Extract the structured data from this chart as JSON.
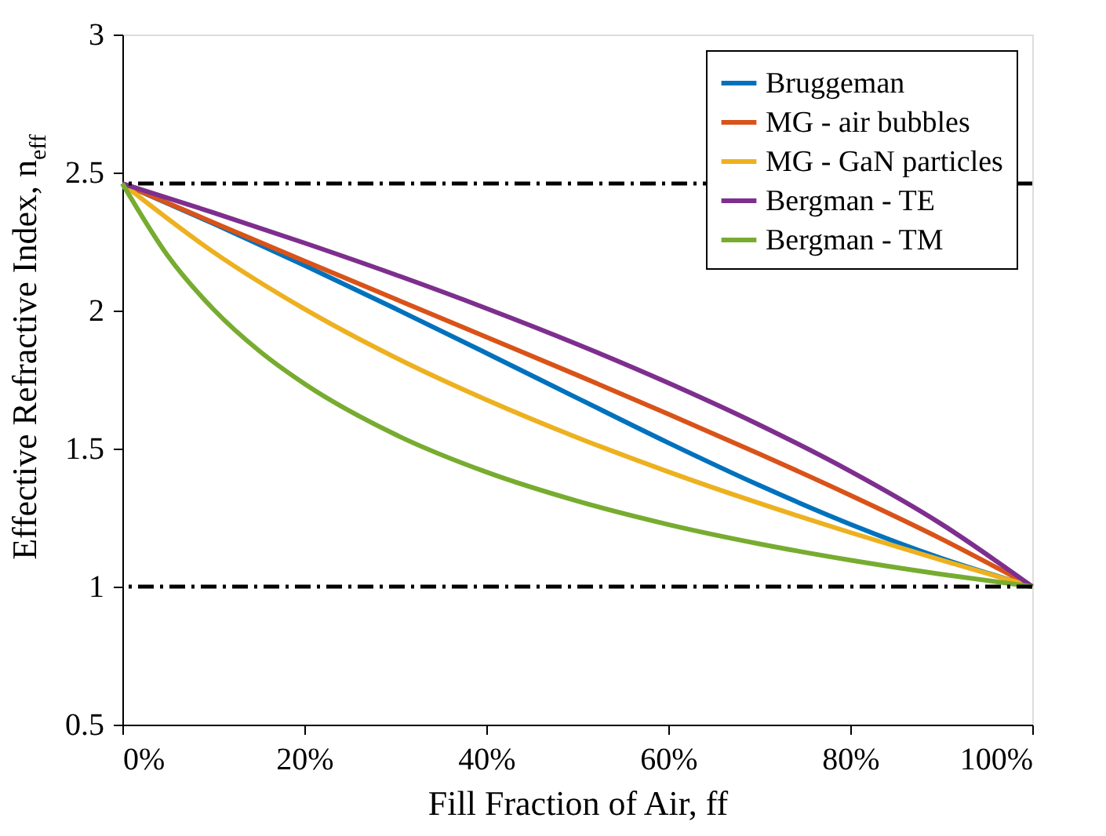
{
  "chart_data": {
    "type": "line",
    "xlabel": "Fill Fraction of Air, ff",
    "ylabel": "Effective Refractive Index, n$_{eff}$",
    "x": [
      0,
      10,
      20,
      30,
      40,
      50,
      60,
      70,
      80,
      90,
      100
    ],
    "series": [
      {
        "name": "Bruggeman",
        "color": "#0072bd",
        "values": [
          2.46,
          2.315,
          2.164,
          2.007,
          1.846,
          1.683,
          1.521,
          1.367,
          1.226,
          1.103,
          1
        ]
      },
      {
        "name": "MG - air bubbles",
        "color": "#d95319",
        "values": [
          2.46,
          2.319,
          2.18,
          2.042,
          1.904,
          1.766,
          1.625,
          1.481,
          1.331,
          1.173,
          1
        ]
      },
      {
        "name": "MG - GaN particles",
        "color": "#edb120",
        "values": [
          2.46,
          2.212,
          2.006,
          1.83,
          1.677,
          1.54,
          1.416,
          1.302,
          1.196,
          1.096,
          1
        ]
      },
      {
        "name": "Bergman - TE",
        "color": "#7e2f8e",
        "values": [
          2.46,
          2.355,
          2.245,
          2.13,
          2.008,
          1.878,
          1.738,
          1.586,
          1.418,
          1.227,
          1
        ]
      },
      {
        "name": "Bergman - TM",
        "color": "#77ac30",
        "x": [
          0,
          5,
          10,
          15,
          20,
          30,
          40,
          50,
          60,
          70,
          80,
          90,
          100
        ],
        "values": [
          2.46,
          2.198,
          2.005,
          1.855,
          1.735,
          1.551,
          1.415,
          1.31,
          1.225,
          1.155,
          1.096,
          1.045,
          1
        ]
      }
    ],
    "xlim": [
      0,
      100
    ],
    "xticks": [
      {
        "value": 0,
        "label": "0%"
      },
      {
        "value": 20,
        "label": "20%"
      },
      {
        "value": 40,
        "label": "40%"
      },
      {
        "value": 60,
        "label": "60%"
      },
      {
        "value": 80,
        "label": "80%"
      },
      {
        "value": 100,
        "label": "100%"
      }
    ],
    "ylim": [
      0.5,
      3
    ],
    "yticks": [
      0.5,
      1,
      1.5,
      2,
      2.5,
      3
    ],
    "ref_lines": [
      {
        "axis": "y",
        "value": 2.46,
        "color": "#000000",
        "line_style": "dashed"
      },
      {
        "axis": "y",
        "value": 1,
        "color": "#000000",
        "line_style": "dashed"
      }
    ],
    "grid": false,
    "legend": "top right",
    "marker": "none",
    "line_style": "solid"
  }
}
